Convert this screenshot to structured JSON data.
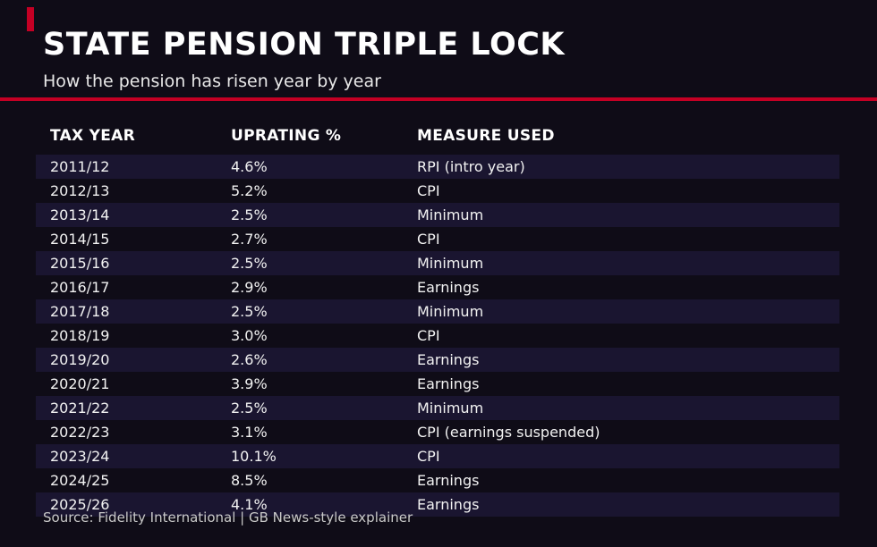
{
  "accent_color": "#c40024",
  "header": {
    "title": "STATE PENSION TRIPLE LOCK",
    "subtitle": "How the pension has risen year by year"
  },
  "table": {
    "columns": [
      "TAX YEAR",
      "UPRATING %",
      "MEASURE USED"
    ],
    "rows": [
      [
        "2011/12",
        "4.6%",
        "RPI (intro year)"
      ],
      [
        "2012/13",
        "5.2%",
        "CPI"
      ],
      [
        "2013/14",
        "2.5%",
        "Minimum"
      ],
      [
        "2014/15",
        "2.7%",
        "CPI"
      ],
      [
        "2015/16",
        "2.5%",
        "Minimum"
      ],
      [
        "2016/17",
        "2.9%",
        "Earnings"
      ],
      [
        "2017/18",
        "2.5%",
        "Minimum"
      ],
      [
        "2018/19",
        "3.0%",
        "CPI"
      ],
      [
        "2019/20",
        "2.6%",
        "Earnings"
      ],
      [
        "2020/21",
        "3.9%",
        "Earnings"
      ],
      [
        "2021/22",
        "2.5%",
        "Minimum"
      ],
      [
        "2022/23",
        "3.1%",
        "CPI (earnings suspended)"
      ],
      [
        "2023/24",
        "10.1%",
        "CPI"
      ],
      [
        "2024/25",
        "8.5%",
        "Earnings"
      ],
      [
        "2025/26",
        "4.1%",
        "Earnings"
      ]
    ]
  },
  "footer": {
    "source": "Source: Fidelity International | GB News-style explainer"
  },
  "chart_data": {
    "type": "table",
    "title": "STATE PENSION TRIPLE LOCK",
    "subtitle": "How the pension has risen year by year",
    "columns": [
      "TAX YEAR",
      "UPRATING %",
      "MEASURE USED"
    ],
    "rows": [
      {
        "tax_year": "2011/12",
        "uprating_pct": 4.6,
        "measure": "RPI (intro year)"
      },
      {
        "tax_year": "2012/13",
        "uprating_pct": 5.2,
        "measure": "CPI"
      },
      {
        "tax_year": "2013/14",
        "uprating_pct": 2.5,
        "measure": "Minimum"
      },
      {
        "tax_year": "2014/15",
        "uprating_pct": 2.7,
        "measure": "CPI"
      },
      {
        "tax_year": "2015/16",
        "uprating_pct": 2.5,
        "measure": "Minimum"
      },
      {
        "tax_year": "2016/17",
        "uprating_pct": 2.9,
        "measure": "Earnings"
      },
      {
        "tax_year": "2017/18",
        "uprating_pct": 2.5,
        "measure": "Minimum"
      },
      {
        "tax_year": "2018/19",
        "uprating_pct": 3.0,
        "measure": "CPI"
      },
      {
        "tax_year": "2019/20",
        "uprating_pct": 2.6,
        "measure": "Earnings"
      },
      {
        "tax_year": "2020/21",
        "uprating_pct": 3.9,
        "measure": "Earnings"
      },
      {
        "tax_year": "2021/22",
        "uprating_pct": 2.5,
        "measure": "Minimum"
      },
      {
        "tax_year": "2022/23",
        "uprating_pct": 3.1,
        "measure": "CPI (earnings suspended)"
      },
      {
        "tax_year": "2023/24",
        "uprating_pct": 10.1,
        "measure": "CPI"
      },
      {
        "tax_year": "2024/25",
        "uprating_pct": 8.5,
        "measure": "Earnings"
      },
      {
        "tax_year": "2025/26",
        "uprating_pct": 4.1,
        "measure": "Earnings"
      }
    ],
    "source": "Source: Fidelity International | GB News-style explainer",
    "layout": {
      "theme": "dark",
      "zebra_striping": true,
      "accent_rule_color": "#c40024"
    }
  }
}
